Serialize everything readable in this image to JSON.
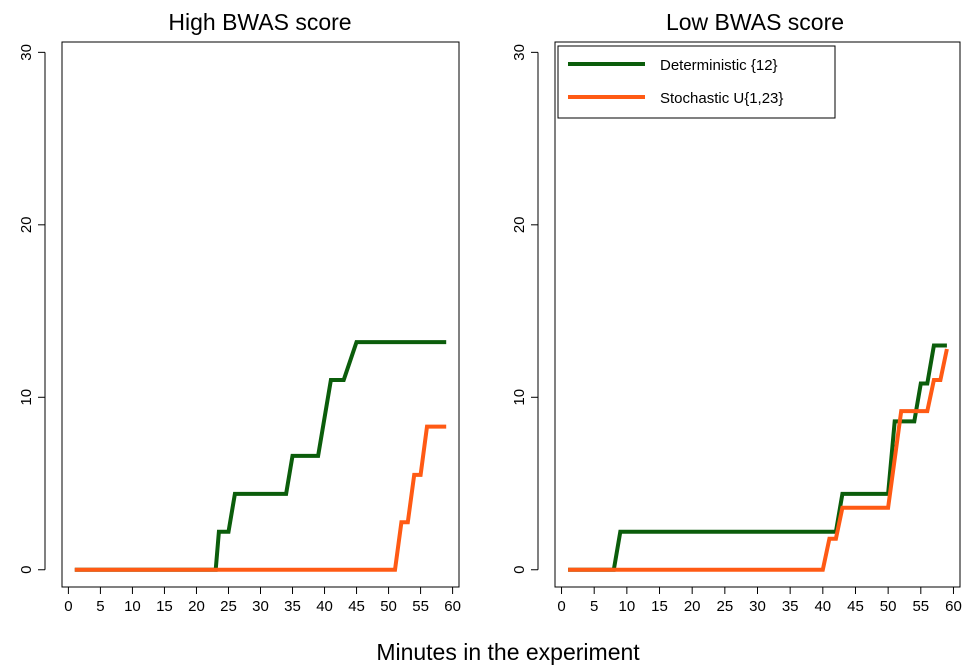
{
  "figure": {
    "xlabel": "Minutes in the experiment"
  },
  "colors": {
    "deterministic": "#0b5d0b",
    "stochastic": "#ff5a14"
  },
  "legend": {
    "placement": "top-left of right panel",
    "entries": [
      "Deterministic {12}",
      "Stochastic U{1,23}"
    ]
  },
  "chart_data": [
    {
      "type": "line",
      "title": "High BWAS score",
      "xlabel": "",
      "ylabel": "",
      "xlim": [
        -1,
        61
      ],
      "ylim": [
        -1,
        30.6
      ],
      "xticks": [
        0,
        5,
        10,
        15,
        20,
        25,
        30,
        35,
        40,
        45,
        50,
        55,
        60
      ],
      "yticks": [
        0,
        10,
        20,
        30
      ],
      "grid": false,
      "series": [
        {
          "name": "Deterministic {12}",
          "color": "#0b5d0b",
          "x": [
            1,
            23,
            23.5,
            25,
            26,
            34,
            35,
            39,
            41,
            43,
            45,
            59
          ],
          "y": [
            0,
            0,
            2.2,
            2.2,
            4.4,
            4.4,
            6.6,
            6.6,
            11.0,
            11.0,
            13.2,
            13.2
          ]
        },
        {
          "name": "Stochastic U{1,23}",
          "color": "#ff5a14",
          "x": [
            1,
            51,
            52,
            53,
            54,
            55,
            56,
            59
          ],
          "y": [
            0,
            0,
            2.75,
            2.75,
            5.5,
            5.5,
            8.3,
            8.3
          ]
        }
      ]
    },
    {
      "type": "line",
      "title": "Low BWAS score",
      "xlabel": "",
      "ylabel": "",
      "xlim": [
        -1,
        61
      ],
      "ylim": [
        -1,
        30.6
      ],
      "xticks": [
        0,
        5,
        10,
        15,
        20,
        25,
        30,
        35,
        40,
        45,
        50,
        55,
        60
      ],
      "yticks": [
        0,
        10,
        20,
        30
      ],
      "grid": false,
      "series": [
        {
          "name": "Deterministic {12}",
          "color": "#0b5d0b",
          "x": [
            1,
            8,
            9,
            42,
            43,
            50,
            51,
            54,
            55,
            56,
            57,
            59
          ],
          "y": [
            0,
            0,
            2.2,
            2.2,
            4.4,
            4.4,
            8.6,
            8.6,
            10.8,
            10.8,
            13.0,
            13.0
          ]
        },
        {
          "name": "Stochastic U{1,23}",
          "color": "#ff5a14",
          "x": [
            1,
            40,
            41,
            42,
            43,
            44,
            50,
            52,
            56,
            57,
            58,
            59
          ],
          "y": [
            0,
            0,
            1.8,
            1.8,
            3.6,
            3.6,
            3.6,
            9.2,
            9.2,
            11.0,
            11.0,
            12.8
          ]
        }
      ]
    }
  ]
}
